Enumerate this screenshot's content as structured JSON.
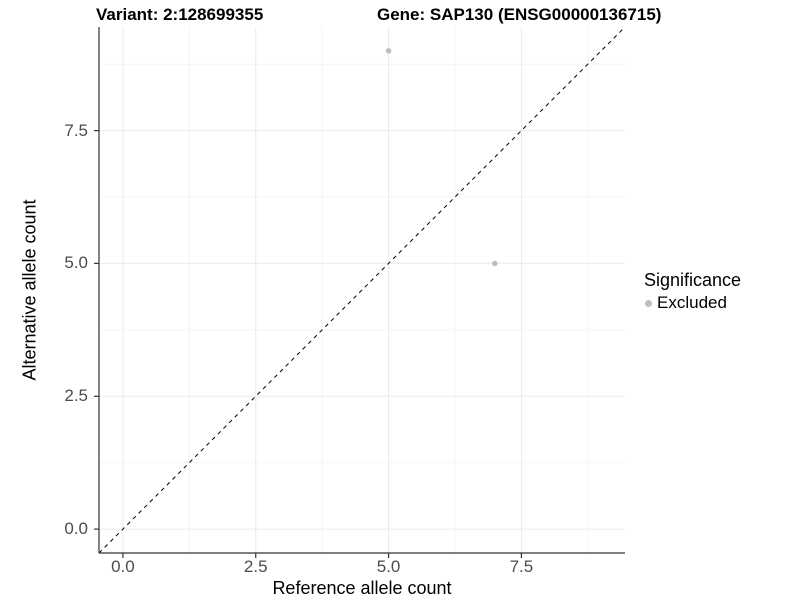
{
  "chart_data": {
    "type": "scatter",
    "title_left": "Variant: 2:128699355",
    "title_right": "Gene: SAP130 (ENSG00000136715)",
    "xlabel": "Reference allele count",
    "ylabel": "Alternative allele count",
    "xlim": [
      -0.45,
      9.45
    ],
    "ylim": [
      -0.45,
      9.45
    ],
    "x_major_ticks": [
      0.0,
      2.5,
      5.0,
      7.5
    ],
    "y_major_ticks": [
      0.0,
      2.5,
      5.0,
      7.5
    ],
    "x_tick_labels": [
      "0.0",
      "2.5",
      "5.0",
      "7.5"
    ],
    "y_tick_labels": [
      "0.0",
      "2.5",
      "5.0",
      "7.5"
    ],
    "x_minor_ticks": [
      1.25,
      3.75,
      6.25,
      8.75
    ],
    "y_minor_ticks": [
      1.25,
      3.75,
      6.25,
      8.75
    ],
    "grid": true,
    "identity_line": {
      "slope": 1,
      "intercept": 0,
      "style": "dashed",
      "color": "#000000"
    },
    "series": [
      {
        "name": "Excluded",
        "points": [
          {
            "x": 5,
            "y": 9
          },
          {
            "x": 7,
            "y": 5
          }
        ]
      }
    ],
    "legend": {
      "position": "right",
      "title": "Significance",
      "items": [
        {
          "label": "Excluded",
          "color": "#bebebe"
        }
      ]
    },
    "colors": {
      "point": "#bebebe",
      "grid_major": "#ebebeb",
      "grid_minor": "#f5f5f5",
      "axis_line": "#333333",
      "tick_mark": "#333333",
      "tick_label": "#4d4d4d",
      "background": "#ffffff"
    }
  }
}
